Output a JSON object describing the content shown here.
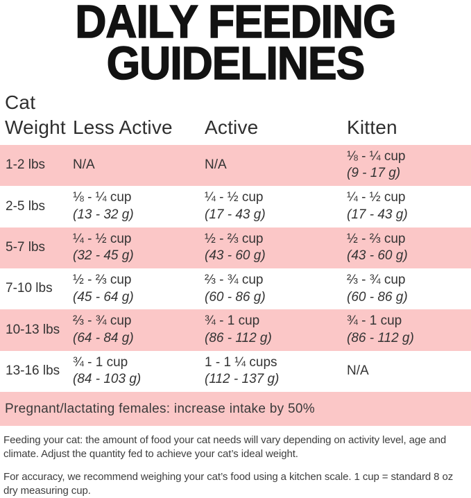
{
  "title": {
    "line1": "DAILY FEEDING",
    "line2": "GUIDELINES"
  },
  "table": {
    "header": {
      "col1_line1": "Cat",
      "col1_line2": "Weight",
      "col2": "Less Active",
      "col3": "Active",
      "col4": "Kitten"
    },
    "rows": [
      {
        "weight": "1-2 lbs",
        "less_active": {
          "cups": "N/A",
          "grams": ""
        },
        "active": {
          "cups": "N/A",
          "grams": ""
        },
        "kitten": {
          "cups": "⅛ - ¼ cup",
          "grams": "(9 - 17 g)"
        }
      },
      {
        "weight": "2-5 lbs",
        "less_active": {
          "cups": "⅛ - ¼ cup",
          "grams": "(13 - 32 g)"
        },
        "active": {
          "cups": "¼ - ½ cup",
          "grams": "(17 - 43 g)"
        },
        "kitten": {
          "cups": "¼ - ½ cup",
          "grams": "(17 - 43 g)"
        }
      },
      {
        "weight": "5-7 lbs",
        "less_active": {
          "cups": "¼ - ½ cup",
          "grams": "(32 - 45 g)"
        },
        "active": {
          "cups": "½ - ⅔ cup",
          "grams": "(43 - 60 g)"
        },
        "kitten": {
          "cups": "½ - ⅔ cup",
          "grams": "(43 - 60 g)"
        }
      },
      {
        "weight": "7-10 lbs",
        "less_active": {
          "cups": "½ - ⅔ cup",
          "grams": "(45 - 64 g)"
        },
        "active": {
          "cups": "⅔ - ¾ cup",
          "grams": "(60 - 86 g)"
        },
        "kitten": {
          "cups": "⅔ - ¾ cup",
          "grams": "(60 - 86 g)"
        }
      },
      {
        "weight": "10-13 lbs",
        "less_active": {
          "cups": "⅔ - ¾ cup",
          "grams": "(64 - 84 g)"
        },
        "active": {
          "cups": "¾ - 1 cup",
          "grams": "(86 - 112 g)"
        },
        "kitten": {
          "cups": "¾ - 1 cup",
          "grams": "(86 - 112 g)"
        }
      },
      {
        "weight": "13-16 lbs",
        "less_active": {
          "cups": "¾ - 1 cup",
          "grams": "(84 - 103 g)"
        },
        "active": {
          "cups": "1 - 1 ¼ cups",
          "grams": "(112 - 137 g)"
        },
        "kitten": {
          "cups": "N/A",
          "grams": ""
        }
      }
    ]
  },
  "banner": {
    "text": "Pregnant/lactating females: increase intake by 50%"
  },
  "footer": {
    "para1": "Feeding your cat: the amount of food your cat needs will vary depending on activity level, age and climate. Adjust the quantity fed to achieve your cat’s ideal weight.",
    "para2": "For accuracy, we recommend weighing your cat’s food using a kitchen scale. 1 cup = standard 8 oz dry measuring cup."
  },
  "colors": {
    "row_highlight": "#FBC7C7",
    "title_text": "#121212",
    "body_text": "#333333"
  }
}
